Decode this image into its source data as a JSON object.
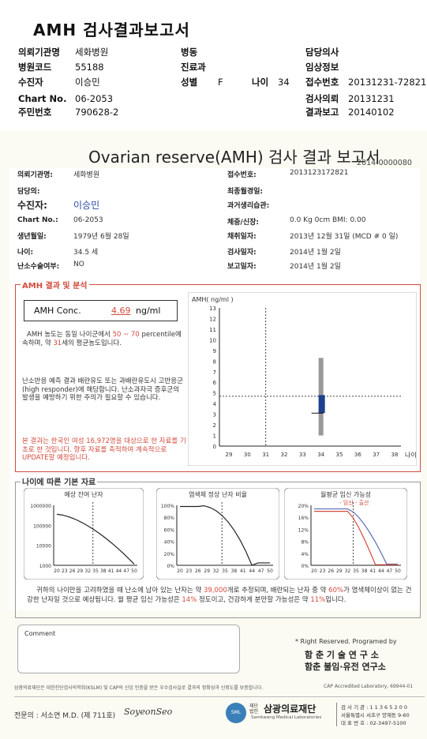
{
  "header": {
    "title": "AMH 검사결과보고서",
    "labels": {
      "institution": "의뢰기관명",
      "ward": "병동",
      "doctor": "담당의사",
      "hospital_code": "병원코드",
      "department": "진료과",
      "clinical_info": "임상정보",
      "patient": "수진자",
      "sex": "성별",
      "age": "나이",
      "receipt_no": "접수번호",
      "chart_no": "Chart No.",
      "request_date": "검사의뢰",
      "resident_no": "주민번호",
      "report_date": "결과보고"
    },
    "values": {
      "institution": "세화병원",
      "hospital_code": "55188",
      "patient": "이승민",
      "sex": "F",
      "age": "34",
      "receipt_no": "20131231-72821",
      "chart_no": "06-2053",
      "request_date": "20131231",
      "resident_no": "790628-2",
      "report_date": "20140102"
    }
  },
  "report": {
    "title": "Ovarian reserve(AMH) 검사 결과 보고서",
    "doc_id": "2014-0000080",
    "left": [
      {
        "label": "의뢰기관명:",
        "value": "세화병원"
      },
      {
        "label": "담당의:",
        "value": ""
      },
      {
        "label": "수진자:",
        "value": "이승민"
      },
      {
        "label": "Chart No.:",
        "value": "06-2053"
      },
      {
        "label": "생년월일:",
        "value": "1979년 6월 28일"
      },
      {
        "label": "나이:",
        "value": "34.5 세"
      },
      {
        "label": "난소수술여부:",
        "value": "NO"
      }
    ],
    "right": [
      {
        "label": "접수번호:",
        "value": "2013123172821"
      },
      {
        "label": "최종월경일:",
        "value": ""
      },
      {
        "label": "과거생리습관:",
        "value": ""
      },
      {
        "label": "체중/신장:",
        "value": "0.0 Kg      0cm    BMI:   0.00"
      },
      {
        "label": "채취일자:",
        "value": "2013년 12월 31일 (MCD # 0 일)"
      },
      {
        "label": "검사일자:",
        "value": "2014년 1월 2일"
      },
      {
        "label": "보고일자:",
        "value": "2014년 1월 2일"
      }
    ]
  },
  "amh": {
    "section_title": "AMH 결과 및 분석",
    "conc_label": "AMH Conc.",
    "conc_value": "4.69",
    "conc_unit": "ng/ml",
    "text1_a": "AMH 농도는 동일 나이군에서",
    "text1_range": "50 ~ 70",
    "text1_b": "percentile에 속하며, 약",
    "text1_age": "31",
    "text1_c": "세의 평균농도입니다.",
    "text2": "난소반응 예측 결과 배란유도 또는 과배란유도시 고반응군 (high responder)에 해당합니다. 난소과자극 증후군의 발생을 예방하기 위한 주의가 필요할 수 있습니다.",
    "note": "본 결과는 한국인 여성 16,972명을 대상으로 한 자료를 기초로 한 것입니다. 향후 자료를 축적하여 계속적으로 UPDATE할 예정입니다."
  },
  "chart_data": [
    {
      "type": "box",
      "ylabel": "AMH( ng/ml )",
      "xlabel": "나이",
      "ylim": [
        0,
        13
      ],
      "yticks": [
        "0",
        "1",
        "2",
        "3",
        "4",
        "5",
        "6",
        "7",
        "8",
        "9",
        "10",
        "11",
        "12",
        "13"
      ],
      "xticks": [
        "29",
        "30",
        "31",
        "32",
        "33",
        "34",
        "35",
        "36",
        "37",
        "38"
      ],
      "box": {
        "x": 34,
        "whisker_low": 1.0,
        "whisker_high": 8.3,
        "q1": 3.1,
        "q3": 4.8
      },
      "marker": {
        "age": 31,
        "value": 4.69
      }
    },
    {
      "type": "line",
      "title": "예상 잔여 난자",
      "yticks": [
        "1000000",
        "100000",
        "10000",
        "1000"
      ],
      "xticks": [
        "20",
        "23",
        "26",
        "29",
        "32",
        "35",
        "38",
        "41",
        "44",
        "47",
        "50"
      ]
    },
    {
      "type": "line",
      "title": "염색체 정상 난자 비율",
      "yticks": [
        "100%",
        "80%",
        "60%",
        "40%",
        "20%",
        "0%"
      ],
      "xticks": [
        "20",
        "23",
        "26",
        "29",
        "32",
        "35",
        "38",
        "41",
        "44",
        "47",
        "50"
      ]
    },
    {
      "type": "line",
      "title": "월평균 임신 가능성",
      "legend": [
        "임신",
        "출산"
      ],
      "yticks": [
        "20%",
        "16%",
        "12%",
        "8%",
        "4%",
        "0%"
      ],
      "xticks": [
        "20",
        "23",
        "26",
        "29",
        "32",
        "35",
        "38",
        "41",
        "44",
        "47",
        "50"
      ]
    }
  ],
  "basics": {
    "section_title": "나이에 따른 기본 자료",
    "text_a": "귀하의 나이만을 고려하였을 때 난소에 남아 있는 난자는 약",
    "eggs": "39,000",
    "text_b": "개로 추정되며, 배란되는 난자 중 약",
    "normal_pct": "60%",
    "text_c": "가 염색체이상이 없는 건강한 난자일 것으로 예상됩니다. 월 평균 임신 가능성은",
    "preg_pct": "14%",
    "text_d": "정도이고, 건강하게 분만할 가능성은 약",
    "birth_pct": "11%",
    "text_e": "입니다."
  },
  "comment": {
    "label": "Comment"
  },
  "rights": {
    "line1": "* Right Reserved. Programed by",
    "line2": "함 춘 기 술 연 구 소",
    "line3": "함춘 불임·유전 연구소"
  },
  "footer": {
    "cert": "삼광의료재단은 대한진단검사의학회(KSLM) 및 CAP의 신임 인증을 받은 우수검사실로 결과의 정확성과 신뢰도를 보증합니다.",
    "cap": "CAP Accredited Laboratory, 69944-01",
    "specialist": "전문의 : 서소연 M.D. (제 711호)",
    "signature": "SoyeonSeo",
    "org_small": "재단법인",
    "org": "삼광의료재단",
    "org_en": "Samkwang Medical Laboratories",
    "lab_no": "검 사 기 관 : 1 1 3 6 5 2 0 0",
    "address": "서울특별시 서초구 양재동 9-60",
    "phone": "대 표 번 호 : 02-3497-5100"
  }
}
